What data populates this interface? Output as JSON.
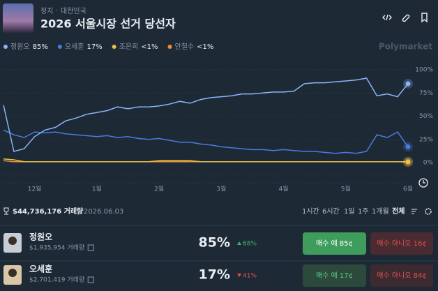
{
  "header": {
    "category": "정치",
    "subcategory": "대한민국",
    "title": "2026 서울시장 선거 당선자"
  },
  "brand": "Polymarket",
  "chart_data": {
    "type": "line",
    "categories": [
      null,
      null,
      null,
      "12월",
      null,
      null,
      null,
      null,
      null,
      "1월",
      null,
      null,
      null,
      null,
      null,
      "2월",
      null,
      null,
      null,
      null,
      null,
      "3월",
      null,
      null,
      null,
      null,
      null,
      "4월",
      null,
      null,
      null,
      null,
      null,
      "5월",
      null,
      null,
      null,
      null,
      null,
      "6월"
    ],
    "series": [
      {
        "name": "정원오",
        "current": "85%",
        "color": "#8ab4f8",
        "values": [
          62,
          12,
          15,
          28,
          35,
          38,
          45,
          48,
          52,
          54,
          56,
          60,
          58,
          60,
          60,
          61,
          63,
          66,
          64,
          68,
          70,
          71,
          72,
          74,
          74,
          75,
          76,
          76,
          77,
          85,
          86,
          86,
          87,
          88,
          89,
          91,
          72,
          74,
          71,
          85
        ]
      },
      {
        "name": "오세훈",
        "current": "17%",
        "color": "#4a7be0",
        "values": [
          35,
          30,
          27,
          33,
          32,
          33,
          31,
          30,
          29,
          28,
          29,
          27,
          28,
          26,
          25,
          26,
          24,
          22,
          22,
          20,
          19,
          17,
          16,
          15,
          14,
          14,
          13,
          14,
          13,
          12,
          12,
          11,
          10,
          11,
          10,
          12,
          30,
          27,
          33,
          17
        ]
      },
      {
        "name": "조은희",
        "current": "<1%",
        "color": "#e8c04a",
        "values": [
          4,
          3,
          1,
          1,
          1,
          1,
          1,
          1,
          1,
          1,
          1,
          1,
          1,
          1,
          1,
          2,
          2,
          2,
          2,
          1,
          1,
          1,
          1,
          1,
          1,
          1,
          1,
          1,
          1,
          1,
          1,
          1,
          1,
          1,
          1,
          1,
          1,
          1,
          1,
          1
        ]
      },
      {
        "name": "안철수",
        "current": "<1%",
        "color": "#f0902a",
        "values": [
          2,
          1,
          1,
          1,
          1,
          1,
          1,
          1,
          1,
          1,
          1,
          1,
          1,
          1,
          1,
          1,
          1,
          1,
          1,
          1,
          1,
          1,
          1,
          1,
          1,
          1,
          1,
          1,
          1,
          1,
          1,
          1,
          1,
          1,
          1,
          1,
          1,
          1,
          1,
          0.5
        ]
      }
    ],
    "ylim": [
      0,
      100
    ],
    "yticks": [
      {
        "value": 0,
        "label": "0%"
      },
      {
        "value": 25,
        "label": "25%"
      },
      {
        "value": 50,
        "label": "50%"
      },
      {
        "value": 75,
        "label": "75%"
      },
      {
        "value": 100,
        "label": "100%"
      }
    ],
    "grid": true
  },
  "footer": {
    "volume": "$44,736,176 거래량",
    "date": "2026.06.03",
    "ranges": [
      "1시간",
      "6시간",
      "1일",
      "1주",
      "1개월",
      "전체"
    ],
    "selected_range": "전체"
  },
  "outcomes": [
    {
      "name": "정원오",
      "volume": "$1,935,954 거래량",
      "chance": "85%",
      "change": "68%",
      "direction": "up",
      "buy_yes": "매수 예 85¢",
      "buy_no": "매수 아니오 16¢"
    },
    {
      "name": "오세훈",
      "volume": "$2,701,419 거래량",
      "chance": "17%",
      "change": "41%",
      "direction": "down",
      "buy_yes": "매수 예 17¢",
      "buy_no": "매수 아니오 84¢"
    }
  ]
}
